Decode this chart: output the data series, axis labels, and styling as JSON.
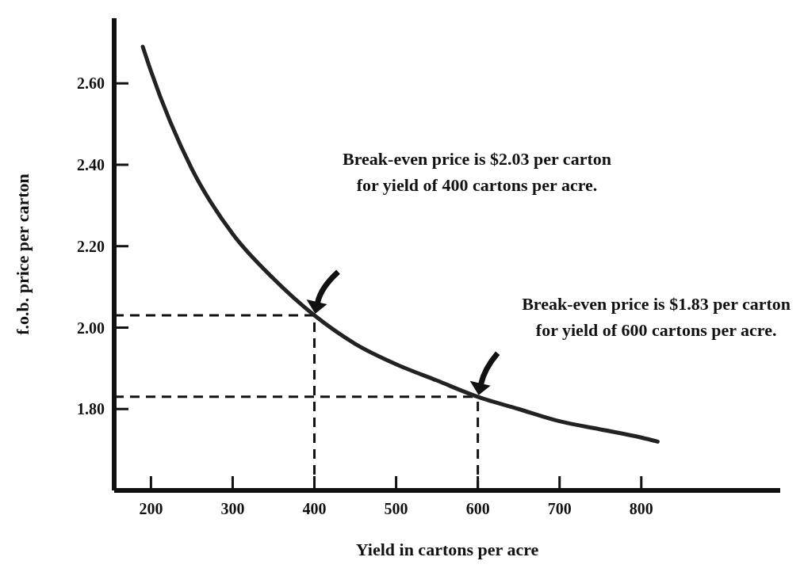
{
  "chart_data": {
    "type": "line",
    "xlabel": "Yield in cartons per acre",
    "ylabel": "f.o.b. price per carton",
    "x": [
      190,
      200,
      250,
      300,
      350,
      400,
      450,
      500,
      550,
      600,
      650,
      700,
      750,
      800,
      820
    ],
    "series": [
      {
        "color": "#222222",
        "values": [
          2.69,
          2.63,
          2.39,
          2.23,
          2.12,
          2.03,
          1.96,
          1.91,
          1.87,
          1.83,
          1.8,
          1.77,
          1.75,
          1.73,
          1.72
        ]
      }
    ],
    "xlim": [
      155,
      970
    ],
    "xticks": [
      200,
      300,
      400,
      500,
      600,
      700,
      800
    ],
    "ylim": [
      1.6,
      2.76
    ],
    "yticks": [
      {
        "value": 1.8,
        "label": "1.80"
      },
      {
        "value": 2.0,
        "label": "2.00"
      },
      {
        "value": 2.2,
        "label": "2.20"
      },
      {
        "value": 2.4,
        "label": "2.40"
      },
      {
        "value": 2.6,
        "label": "2.60"
      }
    ],
    "ref_lines": [
      {
        "axis": "x",
        "value": 400,
        "line_style": "dashed"
      },
      {
        "axis": "y",
        "value": 2.03,
        "line_style": "dashed"
      },
      {
        "axis": "x",
        "value": 600,
        "line_style": "dashed"
      },
      {
        "axis": "y",
        "value": 1.83,
        "line_style": "dashed"
      }
    ],
    "grid": false,
    "legend": false,
    "marker": "none",
    "line_style": "solid",
    "annotations": [
      "Break-even price is $2.03 per carton\nfor yield of 400 cartons per acre.",
      "Break-even price is $1.83 per carton\nfor yield of 600 cartons per acre."
    ]
  }
}
